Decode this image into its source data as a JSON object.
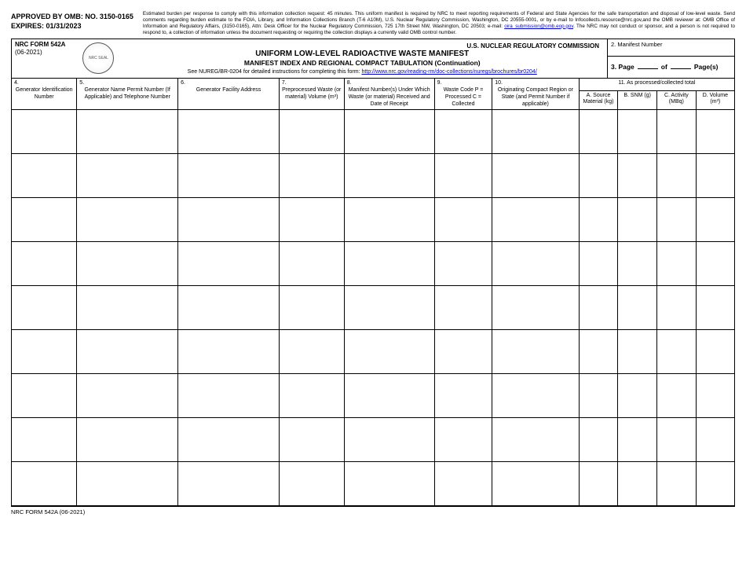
{
  "meta": {
    "omb_line1": "APPROVED BY OMB:  NO. 3150-0165",
    "omb_line2": "EXPIRES:  01/31/2023",
    "burden_text": "Estimated burden per response to comply with this information collection request: 45 minutes.  This uniform manifest is required by NRC to meet reporting requirements of Federal and State Agencies for the safe transportation and disposal  of low-level waste.  Send comments regarding burden estimate to the FOIA, Library, and Information Collections Branch (T-6 A10M), U.S. Nuclear Regulatory Commission, Washington, DC  20555-0001, or by e-mail to Infocollects.resource@nrc.gov,and the OMB reviewer at:  OMB Office of Information and Regulatory Affairs, (3150-0165), Attn:  Desk Officer for the Nuclear Regulatory Commission, 725 17th Street NW, Washington, DC  20503; e-mail:  ",
    "burden_email": "oira_submission@omb.eop.gov",
    "burden_tail": ".  The NRC may not conduct or sponsor, and a person is not required to respond to, a collection of information unless the document requesting or requiring the collection displays a currently valid OMB control number."
  },
  "header": {
    "form_no": "NRC FORM 542A",
    "form_date": "(06-2021)",
    "commission": "U.S. NUCLEAR REGULATORY COMMISSION",
    "title1": "UNIFORM LOW-LEVEL RADIOACTIVE WASTE MANIFEST",
    "title2": "MANIFEST INDEX AND REGIONAL COMPACT TABULATION (Continuation)",
    "instr_pre": "See NUREG/BR-0204 for detailed instructions for completing this form:  ",
    "instr_link": "http://www.nrc.gov/reading-rm/doc-collections/nuregs/brochures/br0204/",
    "box2": "2.  Manifest Number",
    "box3_label": "3.  Page",
    "box3_of": "of",
    "box3_pages": "Page(s)"
  },
  "columns": {
    "c4_num": "4.",
    "c4": "Generator Identification Number",
    "c5_num": "5.",
    "c5": "Generator Name Permit Number (If Applicable) and Telephone Number",
    "c6_num": "6.",
    "c6": "Generator Facility Address",
    "c7_num": "7.",
    "c7": "Preprocessed Waste (or material) Volume (m³)",
    "c8_num": "8.",
    "c8": "Manifest Number(s) Under Which Waste (or material) Received and Date of Receipt",
    "c9_num": "9.",
    "c9": "Waste Code P = Processed C = Collected",
    "c10_num": "10.",
    "c10": "Originating Compact Region or State (and Permit Number if applicable)",
    "c11": "11.  As processed/collected total",
    "c11a": "A.  Source Material (kg)",
    "c11b": "B.  SNM (g)",
    "c11c": "C.  Activity (MBq)",
    "c11d": "D.  Volume (m³)"
  },
  "footer": "NRC FORM 542A (06-2021)",
  "layout": {
    "row_count": 9,
    "col_widths_pct": [
      9,
      14,
      14,
      9,
      12.5,
      8,
      12,
      5.4,
      5.4,
      5.4,
      5.3
    ]
  }
}
